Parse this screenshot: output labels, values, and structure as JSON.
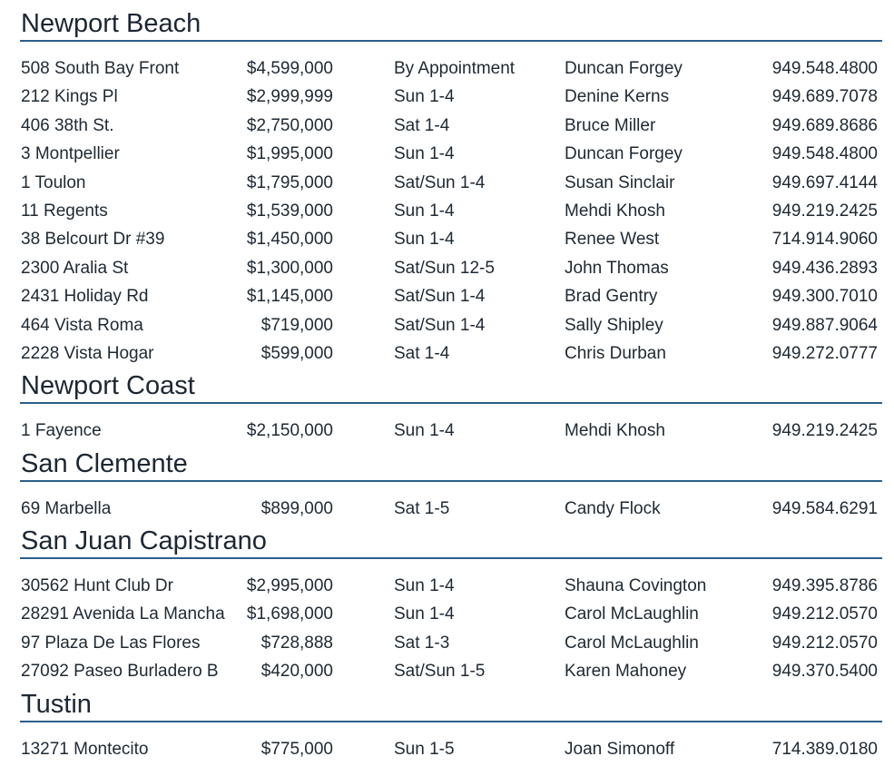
{
  "sections": [
    {
      "title": "Newport Beach",
      "rows": [
        [
          "508 South Bay Front",
          "$4,599,000",
          "By Appointment",
          "Duncan Forgey",
          "949.548.4800"
        ],
        [
          "212 Kings Pl",
          "$2,999,999",
          "Sun 1-4",
          "Denine Kerns",
          "949.689.7078"
        ],
        [
          "406 38th St.",
          "$2,750,000",
          "Sat 1-4",
          "Bruce Miller",
          "949.689.8686"
        ],
        [
          "3 Montpellier",
          "$1,995,000",
          "Sun 1-4",
          "Duncan Forgey",
          "949.548.4800"
        ],
        [
          "1 Toulon",
          "$1,795,000",
          "Sat/Sun 1-4",
          "Susan Sinclair",
          "949.697.4144"
        ],
        [
          "11 Regents",
          "$1,539,000",
          "Sun 1-4",
          "Mehdi Khosh",
          "949.219.2425"
        ],
        [
          "38 Belcourt Dr #39",
          "$1,450,000",
          "Sun 1-4",
          "Renee West",
          "714.914.9060"
        ],
        [
          "2300 Aralia St",
          "$1,300,000",
          "Sat/Sun 12-5",
          "John Thomas",
          "949.436.2893"
        ],
        [
          "2431 Holiday Rd",
          "$1,145,000",
          "Sat/Sun 1-4",
          "Brad Gentry",
          "949.300.7010"
        ],
        [
          "464 Vista Roma",
          "$719,000",
          "Sat/Sun 1-4",
          "Sally Shipley",
          "949.887.9064"
        ],
        [
          "2228 Vista Hogar",
          "$599,000",
          "Sat 1-4",
          "Chris Durban",
          "949.272.0777"
        ]
      ]
    },
    {
      "title": "Newport Coast",
      "rows": [
        [
          "1 Fayence",
          "$2,150,000",
          "Sun 1-4",
          "Mehdi Khosh",
          "949.219.2425"
        ]
      ]
    },
    {
      "title": "San Clemente",
      "rows": [
        [
          "69 Marbella",
          "$899,000",
          "Sat 1-5",
          "Candy Flock",
          "949.584.6291"
        ]
      ]
    },
    {
      "title": "San Juan Capistrano",
      "rows": [
        [
          "30562 Hunt Club Dr",
          "$2,995,000",
          "Sun 1-4",
          "Shauna Covington",
          "949.395.8786"
        ],
        [
          "28291 Avenida La Mancha",
          "$1,698,000",
          "Sun 1-4",
          "Carol McLaughlin",
          "949.212.0570"
        ],
        [
          "97 Plaza De Las Flores",
          "$728,888",
          "Sat 1-3",
          "Carol McLaughlin",
          "949.212.0570"
        ],
        [
          "27092 Paseo Burladero B",
          "$420,000",
          "Sat/Sun 1-5",
          "Karen Mahoney",
          "949.370.5400"
        ]
      ]
    },
    {
      "title": "Tustin",
      "rows": [
        [
          "13271 Montecito",
          "$775,000",
          "Sun 1-5",
          "Joan Simonoff",
          "714.389.0180"
        ]
      ]
    }
  ]
}
